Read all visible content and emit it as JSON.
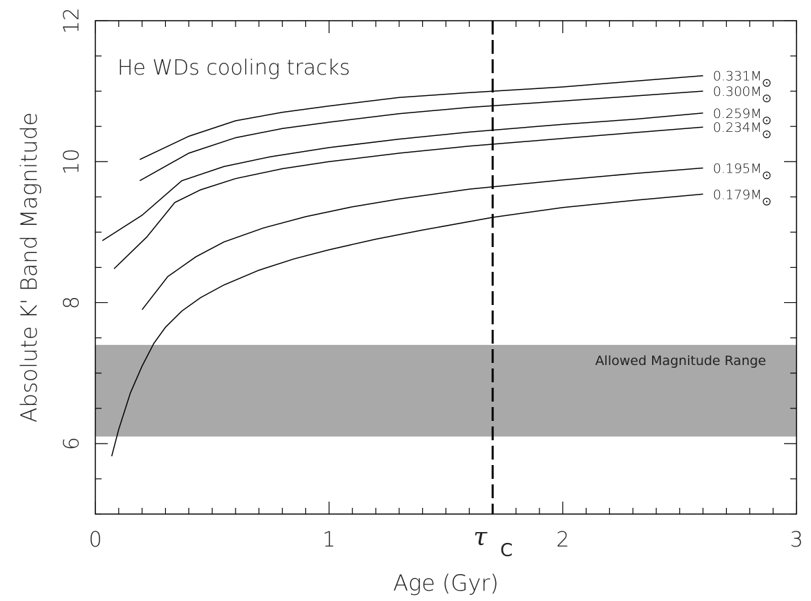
{
  "chart_data": {
    "type": "line",
    "title": "",
    "annotation": "He WDs cooling tracks",
    "xlabel": "Age (Gyr)",
    "ylabel": "Absolute K' Band Magnitude",
    "xlim": [
      0,
      3
    ],
    "ylim": [
      5,
      12
    ],
    "y_inverted": false,
    "xticks": [
      0,
      1,
      2,
      3
    ],
    "xtick_labels": [
      "0",
      "1",
      "2",
      "3"
    ],
    "yticks": [
      6,
      8,
      10,
      12
    ],
    "ytick_labels": [
      "6",
      "8",
      "10",
      "12"
    ],
    "grid": false,
    "band": {
      "label": "Allowed Magnitude Range",
      "y_range": [
        6.1,
        7.4
      ],
      "color": "#a9a9a9"
    },
    "vline": {
      "x": 1.7,
      "label": "τ",
      "label_sub": "C",
      "style": "dashed"
    },
    "series": [
      {
        "name": "0.331M",
        "x": [
          0.19,
          0.4,
          0.6,
          0.8,
          1.0,
          1.3,
          1.6,
          2.0,
          2.3,
          2.6
        ],
        "y": [
          10.03,
          10.36,
          10.58,
          10.7,
          10.79,
          10.91,
          10.98,
          11.06,
          11.14,
          11.22
        ]
      },
      {
        "name": "0.300M",
        "x": [
          0.19,
          0.4,
          0.6,
          0.8,
          1.0,
          1.3,
          1.6,
          2.0,
          2.3,
          2.6
        ],
        "y": [
          9.73,
          10.12,
          10.34,
          10.47,
          10.56,
          10.68,
          10.77,
          10.86,
          10.93,
          11.0
        ]
      },
      {
        "name": "0.259M",
        "x": [
          0.03,
          0.2,
          0.37,
          0.55,
          0.75,
          1.0,
          1.3,
          1.6,
          2.0,
          2.3,
          2.6
        ],
        "y": [
          8.88,
          9.24,
          9.73,
          9.93,
          10.07,
          10.2,
          10.32,
          10.42,
          10.53,
          10.6,
          10.69
        ]
      },
      {
        "name": "0.234M",
        "x": [
          0.08,
          0.22,
          0.34,
          0.45,
          0.6,
          0.8,
          1.0,
          1.3,
          1.6,
          2.0,
          2.3,
          2.6
        ],
        "y": [
          8.48,
          8.93,
          9.42,
          9.6,
          9.76,
          9.9,
          10.0,
          10.12,
          10.22,
          10.33,
          10.41,
          10.49
        ]
      },
      {
        "name": "0.195M",
        "x": [
          0.2,
          0.31,
          0.43,
          0.55,
          0.72,
          0.9,
          1.1,
          1.3,
          1.6,
          2.0,
          2.3,
          2.6
        ],
        "y": [
          7.9,
          8.37,
          8.65,
          8.86,
          9.06,
          9.22,
          9.36,
          9.47,
          9.61,
          9.74,
          9.83,
          9.91
        ]
      },
      {
        "name": "0.179M",
        "x": [
          0.07,
          0.1,
          0.15,
          0.2,
          0.25,
          0.3,
          0.37,
          0.45,
          0.55,
          0.7,
          0.85,
          1.0,
          1.2,
          1.4,
          1.7,
          2.0,
          2.3,
          2.6
        ],
        "y": [
          5.82,
          6.2,
          6.72,
          7.1,
          7.42,
          7.65,
          7.88,
          8.07,
          8.25,
          8.46,
          8.62,
          8.75,
          8.9,
          9.03,
          9.21,
          9.35,
          9.45,
          9.54
        ]
      }
    ],
    "series_label_suffix_symbol": "⊙"
  }
}
